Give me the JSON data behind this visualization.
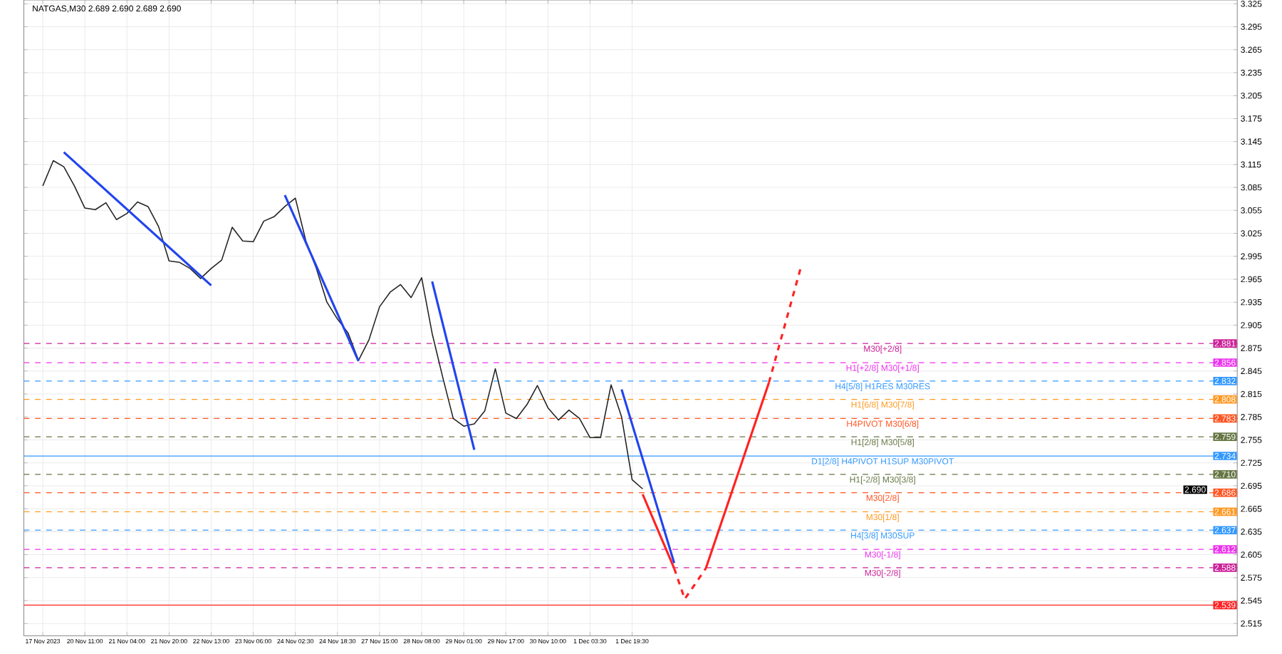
{
  "chart_data": {
    "type": "line",
    "title": "NATGAS,M30 2.689 2.690 2.689 2.690",
    "categories": [
      "17 Nov 2023",
      null,
      null,
      null,
      "20 Nov 11:00",
      null,
      null,
      null,
      "21 Nov 04:00",
      null,
      null,
      null,
      "21 Nov 20:00",
      null,
      null,
      null,
      "22 Nov 13:00",
      null,
      null,
      null,
      "23 Nov 06:00",
      null,
      null,
      null,
      "24 Nov 02:30",
      null,
      null,
      null,
      "24 Nov 18:30",
      null,
      null,
      null,
      "27 Nov 15:00",
      null,
      null,
      null,
      "28 Nov 08:00",
      null,
      null,
      null,
      "29 Nov 01:00",
      null,
      null,
      null,
      "29 Nov 17:00",
      null,
      null,
      null,
      "30 Nov 10:00",
      null,
      null,
      null,
      "1 Dec 03:30",
      null,
      null,
      null,
      "1 Dec 19:30",
      null,
      null,
      null,
      null,
      null,
      null,
      null,
      null,
      null,
      null,
      null,
      null,
      null,
      null,
      null,
      null,
      null,
      null,
      null,
      null,
      null,
      null,
      null,
      null,
      null,
      null,
      null,
      null,
      null,
      null,
      null,
      null,
      null,
      null,
      null,
      null,
      null,
      null,
      null,
      null,
      null,
      null,
      null,
      null,
      null,
      null,
      null,
      null,
      null,
      null,
      null,
      null,
      null,
      null,
      null,
      null,
      null
    ],
    "ylim": [
      2.499,
      3.33
    ],
    "grid": true,
    "yticks": [
      2.515,
      2.545,
      2.575,
      2.605,
      2.635,
      2.665,
      2.695,
      2.725,
      2.755,
      2.785,
      2.815,
      2.845,
      2.875,
      2.905,
      2.935,
      2.965,
      2.995,
      3.025,
      3.055,
      3.085,
      3.115,
      3.145,
      3.175,
      3.205,
      3.235,
      3.265,
      3.295,
      3.325
    ],
    "series": [
      {
        "color": "#222222",
        "values": [
          3.087,
          3.12,
          3.112,
          3.087,
          3.058,
          3.056,
          3.065,
          3.043,
          3.051,
          3.066,
          3.06,
          3.034,
          2.989,
          2.987,
          2.979,
          2.966,
          2.979,
          2.99,
          3.033,
          3.015,
          3.014,
          3.041,
          3.047,
          3.06,
          3.071,
          3.015,
          2.979,
          2.935,
          2.913,
          2.895,
          2.859,
          2.886,
          2.929,
          2.948,
          2.958,
          2.941,
          2.967,
          2.894,
          2.837,
          2.783,
          2.773,
          2.776,
          2.793,
          2.848,
          2.79,
          2.783,
          2.801,
          2.826,
          2.797,
          2.781,
          2.794,
          2.783,
          2.758,
          2.758,
          2.827,
          2.785,
          2.703,
          2.691,
          null,
          null,
          null,
          null,
          null,
          null,
          null,
          null,
          null,
          null,
          null,
          null,
          null,
          null,
          null,
          null,
          null,
          null,
          null,
          null,
          null,
          null,
          null,
          null,
          null,
          null,
          null,
          null,
          null,
          null,
          null,
          null,
          null,
          null,
          null,
          null,
          null,
          null,
          null,
          null,
          null,
          null,
          null,
          null,
          null,
          null,
          null,
          null,
          null,
          null,
          null,
          null,
          null,
          null,
          null,
          null
        ]
      },
      {
        "color": "#2244ee",
        "values": [
          null,
          null,
          3.131,
          null,
          null,
          null,
          null,
          null,
          null,
          null,
          null,
          null,
          null,
          null,
          null,
          null,
          2.957,
          null,
          null,
          null,
          null,
          null,
          null,
          null,
          null,
          null,
          null,
          null,
          null,
          null,
          null,
          null,
          null,
          null,
          null,
          null,
          null,
          null,
          null,
          null,
          null,
          null,
          null,
          null,
          null,
          null,
          null,
          null,
          null,
          null,
          null,
          null,
          null,
          null,
          null,
          null,
          null,
          null,
          null,
          null,
          null,
          null,
          null,
          null,
          null,
          null,
          null,
          null,
          null,
          null,
          null,
          null,
          null,
          null,
          null,
          null,
          null,
          null,
          null,
          null,
          null,
          null,
          null,
          null,
          null,
          null,
          null,
          null,
          null,
          null,
          null,
          null,
          null,
          null,
          null,
          null,
          null,
          null,
          null,
          null,
          null,
          null,
          null,
          null,
          null,
          null,
          null,
          null,
          null,
          null,
          null,
          null,
          null,
          null
        ]
      },
      {
        "color": "#2244ee",
        "values": [
          null,
          null,
          null,
          null,
          null,
          null,
          null,
          null,
          null,
          null,
          null,
          null,
          null,
          null,
          null,
          null,
          null,
          null,
          null,
          null,
          null,
          null,
          null,
          3.075,
          null,
          null,
          null,
          null,
          null,
          null,
          2.858,
          null,
          null,
          null,
          null,
          null,
          null,
          null,
          null,
          null,
          null,
          null,
          null,
          null,
          null,
          null,
          null,
          null,
          null,
          null,
          null,
          null,
          null,
          null,
          null,
          null,
          null,
          null,
          null,
          null,
          null,
          null,
          null,
          null,
          null,
          null,
          null,
          null,
          null,
          null,
          null,
          null,
          null,
          null,
          null,
          null,
          null,
          null,
          null,
          null,
          null,
          null,
          null,
          null,
          null,
          null,
          null,
          null,
          null,
          null,
          null,
          null,
          null,
          null,
          null,
          null,
          null,
          null,
          null,
          null,
          null,
          null,
          null,
          null,
          null,
          null,
          null,
          null,
          null,
          null,
          null,
          null,
          null,
          null
        ]
      },
      {
        "color": "#2244ee",
        "values": [
          null,
          null,
          null,
          null,
          null,
          null,
          null,
          null,
          null,
          null,
          null,
          null,
          null,
          null,
          null,
          null,
          null,
          null,
          null,
          null,
          null,
          null,
          null,
          null,
          null,
          null,
          null,
          null,
          null,
          null,
          null,
          null,
          null,
          null,
          null,
          null,
          null,
          2.962,
          null,
          null,
          null,
          2.742,
          null,
          null,
          null,
          null,
          null,
          null,
          null,
          null,
          null,
          null,
          null,
          null,
          null,
          null,
          null,
          null,
          null,
          null,
          null,
          null,
          null,
          null,
          null,
          null,
          null,
          null,
          null,
          null,
          null,
          null,
          null,
          null,
          null,
          null,
          null,
          null,
          null,
          null,
          null,
          null,
          null,
          null,
          null,
          null,
          null,
          null,
          null,
          null,
          null,
          null,
          null,
          null,
          null,
          null,
          null,
          null,
          null,
          null,
          null,
          null,
          null,
          null,
          null,
          null,
          null,
          null,
          null,
          null,
          null,
          null,
          null,
          null
        ]
      },
      {
        "color": "#2244ee",
        "values": [
          null,
          null,
          null,
          null,
          null,
          null,
          null,
          null,
          null,
          null,
          null,
          null,
          null,
          null,
          null,
          null,
          null,
          null,
          null,
          null,
          null,
          null,
          null,
          null,
          null,
          null,
          null,
          null,
          null,
          null,
          null,
          null,
          null,
          null,
          null,
          null,
          null,
          null,
          null,
          null,
          null,
          null,
          null,
          null,
          null,
          null,
          null,
          null,
          null,
          null,
          null,
          null,
          null,
          null,
          null,
          2.821,
          null,
          null,
          null,
          null,
          2.594,
          null,
          null,
          null,
          null,
          null,
          null,
          null,
          null,
          null,
          null,
          null,
          null,
          null,
          null,
          null,
          null,
          null,
          null,
          null,
          null,
          null,
          null,
          null,
          null,
          null,
          null,
          null,
          null,
          null,
          null,
          null,
          null,
          null,
          null,
          null,
          null,
          null,
          null,
          null,
          null,
          null,
          null,
          null,
          null,
          null,
          null,
          null,
          null,
          null,
          null,
          null,
          null,
          null
        ]
      },
      {
        "color": "#ff2222",
        "values": [
          null,
          null,
          null,
          null,
          null,
          null,
          null,
          null,
          null,
          null,
          null,
          null,
          null,
          null,
          null,
          null,
          null,
          null,
          null,
          null,
          null,
          null,
          null,
          null,
          null,
          null,
          null,
          null,
          null,
          null,
          null,
          null,
          null,
          null,
          null,
          null,
          null,
          null,
          null,
          null,
          null,
          null,
          null,
          null,
          null,
          null,
          null,
          null,
          null,
          null,
          null,
          null,
          null,
          null,
          null,
          null,
          null,
          2.684,
          null,
          null,
          2.587,
          null,
          null,
          null,
          null,
          null,
          null,
          null,
          null,
          null,
          null,
          null,
          null,
          null,
          null,
          null,
          null,
          null,
          null,
          null,
          null,
          null,
          null,
          null,
          null,
          null,
          null,
          null,
          null,
          null,
          null,
          null,
          null,
          null,
          null,
          null,
          null,
          null,
          null,
          null,
          null,
          null,
          null,
          null,
          null,
          null,
          null,
          null,
          null,
          null,
          null,
          null,
          null,
          null
        ]
      },
      {
        "color": "#ff2222",
        "line_style": "dashed",
        "values": [
          null,
          null,
          null,
          null,
          null,
          null,
          null,
          null,
          null,
          null,
          null,
          null,
          null,
          null,
          null,
          null,
          null,
          null,
          null,
          null,
          null,
          null,
          null,
          null,
          null,
          null,
          null,
          null,
          null,
          null,
          null,
          null,
          null,
          null,
          null,
          null,
          null,
          null,
          null,
          null,
          null,
          null,
          null,
          null,
          null,
          null,
          null,
          null,
          null,
          null,
          null,
          null,
          null,
          null,
          null,
          null,
          null,
          null,
          null,
          null,
          2.587,
          2.547,
          null,
          2.587,
          null,
          null,
          null,
          null,
          null,
          null,
          null,
          null,
          null,
          null,
          null,
          null,
          null,
          null,
          null,
          null,
          null,
          null,
          null,
          null,
          null,
          null,
          null,
          null,
          null,
          null,
          null,
          null,
          null,
          null,
          null,
          null,
          null,
          null,
          null,
          null,
          null,
          null,
          null,
          null,
          null,
          null,
          null,
          null,
          null,
          null,
          null,
          null,
          null,
          null
        ]
      },
      {
        "color": "#ff2222",
        "values": [
          null,
          null,
          null,
          null,
          null,
          null,
          null,
          null,
          null,
          null,
          null,
          null,
          null,
          null,
          null,
          null,
          null,
          null,
          null,
          null,
          null,
          null,
          null,
          null,
          null,
          null,
          null,
          null,
          null,
          null,
          null,
          null,
          null,
          null,
          null,
          null,
          null,
          null,
          null,
          null,
          null,
          null,
          null,
          null,
          null,
          null,
          null,
          null,
          null,
          null,
          null,
          null,
          null,
          null,
          null,
          null,
          null,
          null,
          null,
          null,
          null,
          null,
          null,
          2.587,
          null,
          null,
          null,
          null,
          null,
          2.83,
          null,
          null,
          null,
          null,
          null,
          null,
          null,
          null,
          null,
          null,
          null,
          null,
          null,
          null,
          null,
          null,
          null,
          null,
          null,
          null,
          null,
          null,
          null,
          null,
          null,
          null,
          null,
          null,
          null,
          null,
          null,
          null,
          null,
          null,
          null,
          null,
          null,
          null,
          null,
          null,
          null,
          null,
          null,
          null
        ]
      },
      {
        "color": "#ff2222",
        "line_style": "dashed",
        "values": [
          null,
          null,
          null,
          null,
          null,
          null,
          null,
          null,
          null,
          null,
          null,
          null,
          null,
          null,
          null,
          null,
          null,
          null,
          null,
          null,
          null,
          null,
          null,
          null,
          null,
          null,
          null,
          null,
          null,
          null,
          null,
          null,
          null,
          null,
          null,
          null,
          null,
          null,
          null,
          null,
          null,
          null,
          null,
          null,
          null,
          null,
          null,
          null,
          null,
          null,
          null,
          null,
          null,
          null,
          null,
          null,
          null,
          null,
          null,
          null,
          null,
          null,
          null,
          null,
          null,
          null,
          null,
          null,
          null,
          2.83,
          null,
          null,
          2.979,
          null,
          null,
          null,
          null,
          null,
          null,
          null,
          null,
          null,
          null,
          null,
          null,
          null,
          null,
          null,
          null,
          null,
          null,
          null,
          null,
          null,
          null,
          null,
          null,
          null,
          null,
          null,
          null,
          null,
          null,
          null,
          null,
          null,
          null,
          null,
          null,
          null,
          null,
          null,
          null,
          null
        ]
      }
    ],
    "ref_lines": [
      {
        "axis": "y",
        "value": 2.881,
        "label": "M30[+2/8]",
        "color": "#cc2299",
        "line_style": "dashed"
      },
      {
        "axis": "y",
        "value": 2.856,
        "label": "H1[+2/8] M30[+1/8]",
        "color": "#ee33ee",
        "line_style": "dashed"
      },
      {
        "axis": "y",
        "value": 2.832,
        "label": "H4[5/8] H1RES M30RES",
        "color": "#3399ff",
        "line_style": "dashed"
      },
      {
        "axis": "y",
        "value": 2.808,
        "label": "H1[6/8] M30[7/8]",
        "color": "#ff9922",
        "line_style": "dashed"
      },
      {
        "axis": "y",
        "value": 2.783,
        "label": "H4PIVOT M30[6/8]",
        "color": "#ff5522",
        "line_style": "dashed"
      },
      {
        "axis": "y",
        "value": 2.759,
        "label": "H1[2/8] M30[5/8]",
        "color": "#667744",
        "line_style": "dashed"
      },
      {
        "axis": "y",
        "value": 2.734,
        "label": "D1[2/8] H4PIVOT H1SUP M30PIVOT",
        "color": "#3399ff",
        "line_style": "solid"
      },
      {
        "axis": "y",
        "value": 2.71,
        "label": "H1[-2/8] M30[3/8]",
        "color": "#667744",
        "line_style": "dashed"
      },
      {
        "axis": "y",
        "value": 2.686,
        "label": "M30[2/8]",
        "color": "#ff5522",
        "line_style": "dashed"
      },
      {
        "axis": "y",
        "value": 2.661,
        "label": "M30[1/8]",
        "color": "#ff9922",
        "line_style": "dashed"
      },
      {
        "axis": "y",
        "value": 2.637,
        "label": "H4[3/8] M30SUP",
        "color": "#3399ff",
        "line_style": "dashed"
      },
      {
        "axis": "y",
        "value": 2.612,
        "label": "M30[-1/8]",
        "color": "#ee33ee",
        "line_style": "dashed"
      },
      {
        "axis": "y",
        "value": 2.588,
        "label": "M30[-2/8]",
        "color": "#cc2299",
        "line_style": "dashed"
      },
      {
        "axis": "y",
        "value": 2.539,
        "color": "#ff2222",
        "line_style": "solid"
      }
    ],
    "annotations": [
      {
        "text": "2.881",
        "y": 2.881
      },
      {
        "text": "2.856",
        "y": 2.856
      },
      {
        "text": "2.832",
        "y": 2.832
      },
      {
        "text": "2.808",
        "y": 2.808
      },
      {
        "text": "2.783",
        "y": 2.783
      },
      {
        "text": "2.759",
        "y": 2.759
      },
      {
        "text": "2.734",
        "y": 2.734
      },
      {
        "text": "2.710",
        "y": 2.71
      },
      {
        "text": "2.690",
        "y": 2.69
      },
      {
        "text": "2.686",
        "y": 2.686
      },
      {
        "text": "2.661",
        "y": 2.661
      },
      {
        "text": "2.637",
        "y": 2.637
      },
      {
        "text": "2.612",
        "y": 2.612
      },
      {
        "text": "2.588",
        "y": 2.588
      },
      {
        "text": "2.539",
        "y": 2.539
      }
    ]
  }
}
